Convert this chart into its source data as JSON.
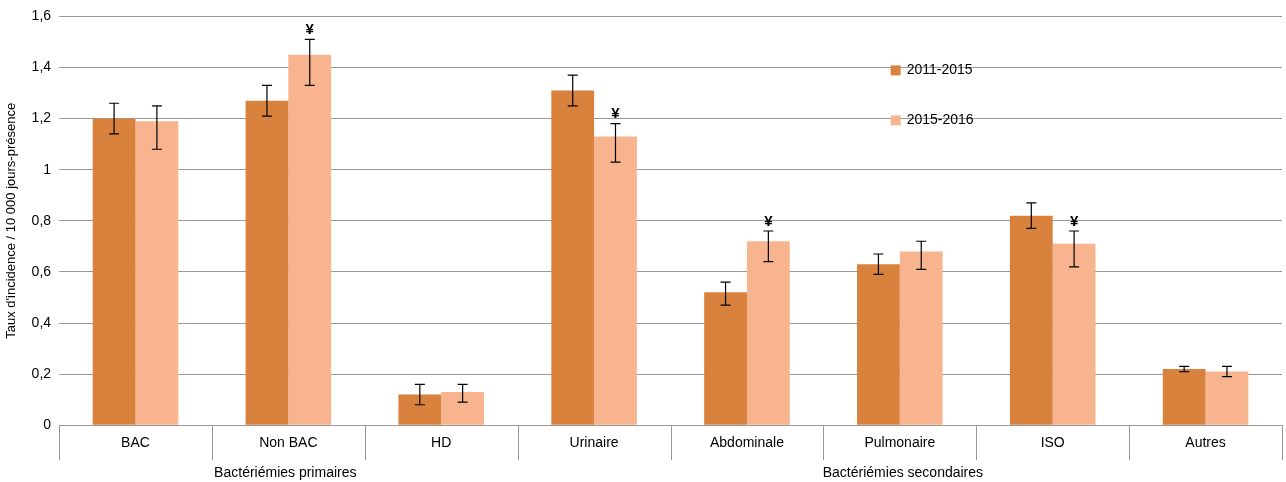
{
  "chart_data": {
    "type": "bar",
    "ylabel": "Taux d'incidence / 10 000 jours-présence",
    "categories": [
      "BAC",
      "Non BAC",
      "HD",
      "Urinaire",
      "Abdominale",
      "Pulmonaire",
      "ISO",
      "Autres"
    ],
    "series": [
      {
        "name": "2011-2015",
        "color": "#d9823e",
        "values": [
          1.2,
          1.27,
          0.12,
          1.31,
          0.52,
          0.63,
          0.82,
          0.22
        ],
        "errors": [
          [
            1.14,
            1.26
          ],
          [
            1.21,
            1.33
          ],
          [
            0.08,
            0.16
          ],
          [
            1.25,
            1.37
          ],
          [
            0.47,
            0.56
          ],
          [
            0.59,
            0.67
          ],
          [
            0.77,
            0.87
          ],
          [
            0.21,
            0.23
          ]
        ]
      },
      {
        "name": "2015-2016",
        "color": "#f8b48f",
        "values": [
          1.19,
          1.45,
          0.13,
          1.13,
          0.72,
          0.68,
          0.71,
          0.21
        ],
        "errors": [
          [
            1.08,
            1.25
          ],
          [
            1.33,
            1.51
          ],
          [
            0.09,
            0.16
          ],
          [
            1.03,
            1.18
          ],
          [
            0.64,
            0.76
          ],
          [
            0.61,
            0.72
          ],
          [
            0.62,
            0.76
          ],
          [
            0.19,
            0.23
          ]
        ]
      }
    ],
    "ylim": [
      0,
      1.6
    ],
    "yticks": [
      {
        "value": 0,
        "label": "0"
      },
      {
        "value": 0.2,
        "label": "0,2"
      },
      {
        "value": 0.4,
        "label": "0,4"
      },
      {
        "value": 0.6,
        "label": "0,6"
      },
      {
        "value": 0.8,
        "label": "0,8"
      },
      {
        "value": 1,
        "label": "1"
      },
      {
        "value": 1.2,
        "label": "1,2"
      },
      {
        "value": 1.4,
        "label": "1,4"
      },
      {
        "value": 1.6,
        "label": "1,6"
      }
    ],
    "grid": "y",
    "legend": "top right",
    "annotations": [
      {
        "text": "¥",
        "x": "Non BAC",
        "y": 1.45
      },
      {
        "text": "¥",
        "x": "Urinaire",
        "y": 1.13
      },
      {
        "text": "¥",
        "x": "Abdominale",
        "y": 0.72
      },
      {
        "text": "¥",
        "x": "ISO",
        "y": 0.71
      },
      "Bactériémies primaires",
      "Bactériémies secondaires"
    ]
  }
}
